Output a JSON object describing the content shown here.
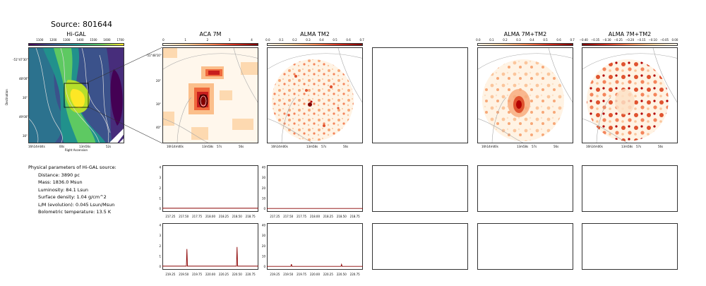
{
  "page_title": "Source: 801644",
  "panels": {
    "higal": {
      "title": "Hi-GAL",
      "cbar_ticks": [
        "1100",
        "1200",
        "1300",
        "1400",
        "1500",
        "1600",
        "1700"
      ],
      "y_ticks": [
        "-51°47'30\"",
        "48'00\"",
        "30\"",
        "49'00\"",
        "30\""
      ],
      "x_ticks": [
        "16h14m04s",
        "00s",
        "13m56s",
        "52s"
      ],
      "xlabel": "Right Ascension",
      "ylabel": "Declination"
    },
    "aca7m": {
      "title": "ACA 7M",
      "cbar_ticks": [
        "0",
        "1",
        "2",
        "3",
        "4"
      ],
      "y_ticks": [
        "-51°48'10\"",
        "20\"",
        "30\"",
        "40\""
      ],
      "x_ticks": [
        "16h14m00s",
        "13m58s",
        "57s",
        "56s"
      ]
    },
    "tm2": {
      "title": "ALMA TM2",
      "cbar_ticks": [
        "0.0",
        "0.1",
        "0.2",
        "0.3",
        "0.4",
        "0.5",
        "0.6",
        "0.7"
      ],
      "x_ticks": [
        "16h14m00s",
        "13m58s",
        "57s",
        "56s"
      ]
    },
    "combined": {
      "title": "ALMA 7M+TM2",
      "cbar_ticks": [
        "0.0",
        "0.1",
        "0.2",
        "0.3",
        "0.4",
        "0.5",
        "0.6",
        "0.7"
      ],
      "x_ticks": [
        "16h14m00s",
        "13m58s",
        "57s",
        "56s"
      ]
    },
    "combined_neg": {
      "title": "ALMA 7M+TM2",
      "cbar_ticks": [
        "−0.40",
        "−0.35",
        "−0.30",
        "−0.25",
        "−0.20",
        "−0.15",
        "−0.10",
        "−0.05",
        "0.00"
      ],
      "x_ticks": [
        "16h14m00s",
        "13m58s",
        "57s",
        "56s"
      ]
    }
  },
  "physical_parameters": {
    "heading": "Physical parameters of Hi-GAL source:",
    "lines": [
      "Distance: 3890 pc",
      "Mass: 1836.0 Msun",
      "Luminosity: 84.1 Lsun",
      "Surface density: 1.04 g/cm^2",
      "L/M (evolution): 0.045 Lsun/Msun",
      "Bolometric temperature: 13.5 K"
    ]
  },
  "colors": {
    "heat_dark": "#7f0000",
    "heat_mid": "#e34a33",
    "heat_light": "#fee8c8",
    "viridis_yellow": "#fde725",
    "viridis_purple": "#440154",
    "spectrum_line": "#8b0000"
  },
  "chart_data": [
    {
      "type": "line",
      "name": "spectrum-aca-row1",
      "x_ticks": [
        "217.25",
        "217.50",
        "217.75",
        "218.00",
        "218.25",
        "218.50",
        "218.75"
      ],
      "xlim": [
        217.1,
        218.9
      ],
      "y_ticks": [
        "0",
        "1",
        "2",
        "3",
        "4"
      ],
      "ylim": [
        -0.3,
        4.2
      ],
      "x": [
        217.1,
        218.9
      ],
      "values": [
        0.05,
        0.05
      ]
    },
    {
      "type": "line",
      "name": "spectrum-tm2-row1",
      "x_ticks": [
        "217.25",
        "217.50",
        "217.75",
        "218.00",
        "218.25",
        "218.50",
        "218.75"
      ],
      "xlim": [
        217.1,
        218.9
      ],
      "y_ticks": [
        "0",
        "10",
        "20",
        "30",
        "40"
      ],
      "ylim": [
        -3,
        42
      ],
      "x": [
        217.1,
        218.9
      ],
      "values": [
        0.3,
        0.3
      ]
    },
    {
      "type": "line",
      "name": "spectrum-aca-row2",
      "x_ticks": [
        "219.25",
        "219.50",
        "219.75",
        "220.00",
        "220.25",
        "220.50",
        "220.75"
      ],
      "xlim": [
        219.1,
        220.9
      ],
      "y_ticks": [
        "0",
        "1",
        "2",
        "3",
        "4"
      ],
      "ylim": [
        -0.3,
        4.2
      ],
      "x": [
        219.1,
        219.55,
        219.56,
        219.57,
        220.49,
        220.5,
        220.51,
        220.9
      ],
      "values": [
        0.05,
        0.05,
        1.7,
        0.05,
        0.05,
        1.9,
        0.05,
        0.05
      ]
    },
    {
      "type": "line",
      "name": "spectrum-tm2-row2",
      "x_ticks": [
        "219.25",
        "219.50",
        "219.75",
        "220.00",
        "220.25",
        "220.50",
        "220.75"
      ],
      "xlim": [
        219.1,
        220.9
      ],
      "y_ticks": [
        "0",
        "10",
        "20",
        "30",
        "40"
      ],
      "ylim": [
        -3,
        42
      ],
      "x": [
        219.1,
        219.55,
        219.56,
        219.57,
        220.49,
        220.5,
        220.51,
        220.9
      ],
      "values": [
        0.3,
        0.3,
        2.4,
        0.3,
        0.3,
        2.2,
        0.3,
        0.3
      ]
    }
  ]
}
